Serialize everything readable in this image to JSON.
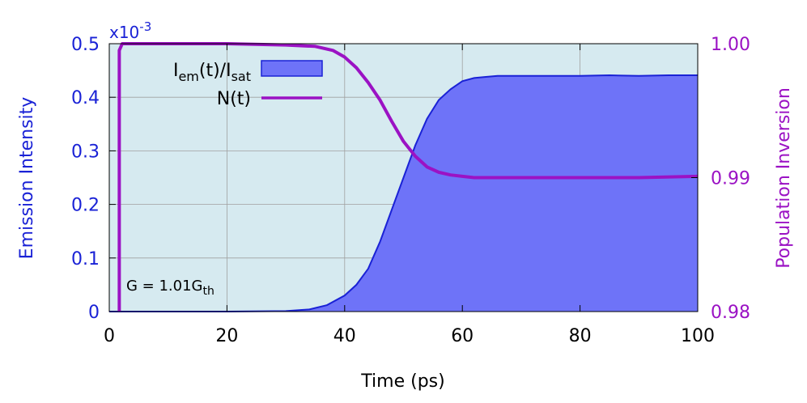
{
  "chart_data": {
    "type": "area",
    "x_axis": {
      "label": "Time (ps)",
      "range": [
        0,
        100
      ],
      "ticks": [
        0,
        20,
        40,
        60,
        80,
        100
      ],
      "tick_labels": [
        "0",
        "20",
        "40",
        "60",
        "80",
        "100"
      ]
    },
    "y_axis_left": {
      "label": "Emission Intensity",
      "range": [
        0,
        0.5
      ],
      "ticks": [
        0,
        0.1,
        0.2,
        0.3,
        0.4,
        0.5
      ],
      "tick_labels": [
        "0",
        "0.1",
        "0.2",
        "0.3",
        "0.4",
        "0.5"
      ],
      "multiplier_base": "x10",
      "multiplier_exp": "-3",
      "color": "#1a22d6"
    },
    "y_axis_right": {
      "label": "Population Inversion",
      "range": [
        0.98,
        1.0
      ],
      "ticks": [
        0.98,
        0.99,
        1.0
      ],
      "tick_labels": [
        "0.98",
        "0.99",
        "1.00"
      ],
      "color": "#9b12c4"
    },
    "grid": true,
    "legend": {
      "placement": "top-left",
      "entries": [
        {
          "series": "emission",
          "label_main": "I",
          "label_sub1": "em",
          "label_mid": "(t)/I",
          "label_sub2": "sat"
        },
        {
          "series": "inversion",
          "label": "N(t)"
        }
      ]
    },
    "annotation": {
      "main": "G = 1.01G",
      "sub": "th"
    },
    "series": [
      {
        "name": "emission",
        "axis": "left",
        "style": "filled-area",
        "fill_color": "#6e73f8",
        "line_color": "#1a22d6",
        "x": [
          0,
          20,
          30,
          34,
          37,
          40,
          42,
          44,
          46,
          48,
          50,
          52,
          54,
          56,
          58,
          60,
          62,
          64,
          66,
          70,
          75,
          80,
          85,
          90,
          95,
          100
        ],
        "y": [
          0,
          0,
          0.001,
          0.004,
          0.012,
          0.03,
          0.05,
          0.08,
          0.13,
          0.19,
          0.25,
          0.31,
          0.36,
          0.395,
          0.415,
          0.43,
          0.436,
          0.438,
          0.44,
          0.44,
          0.44,
          0.44,
          0.441,
          0.44,
          0.441,
          0.441
        ]
      },
      {
        "name": "inversion",
        "axis": "right",
        "style": "line",
        "color": "#9b12c4",
        "x": [
          1.7,
          1.7,
          2.2,
          5,
          10,
          20,
          30,
          35,
          38,
          40,
          42,
          44,
          46,
          48,
          50,
          52,
          54,
          56,
          58,
          60,
          62,
          65,
          70,
          80,
          90,
          100
        ],
        "y": [
          0.98,
          0.9995,
          1.0,
          1.0,
          1.0,
          1.0,
          0.9999,
          0.9998,
          0.9995,
          0.999,
          0.9982,
          0.9971,
          0.9958,
          0.9942,
          0.9927,
          0.9916,
          0.9908,
          0.9904,
          0.9902,
          0.9901,
          0.99,
          0.99,
          0.99,
          0.99,
          0.99,
          0.9901
        ]
      }
    ]
  },
  "colors": {
    "plot_background": "#d6eaf0",
    "grid": "#a0a0a0"
  }
}
